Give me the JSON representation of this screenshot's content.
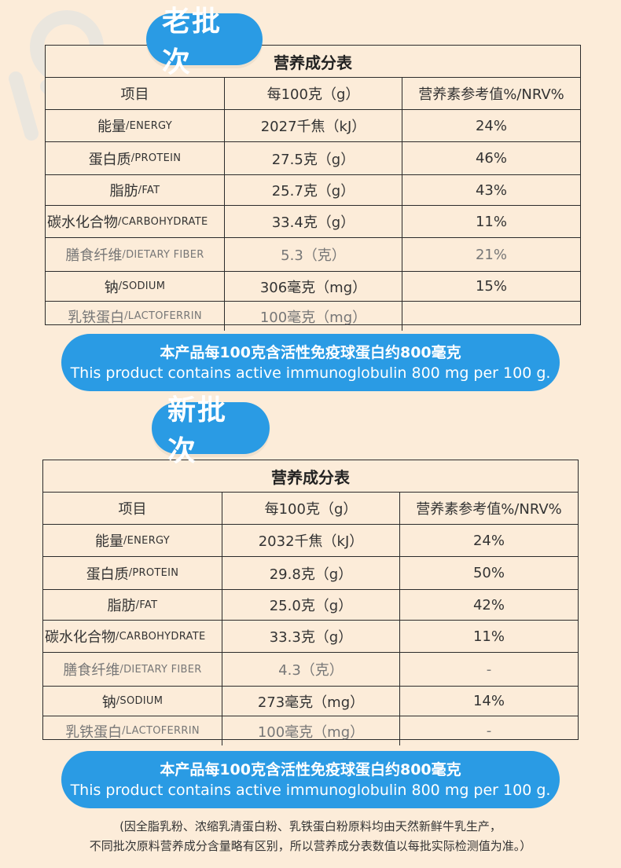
{
  "old_batch": {
    "badge": "老批次",
    "table_title": "营养成分表",
    "headers": [
      "项目",
      "每100克（g）",
      "营养素参考值%/NRV%"
    ],
    "rows": [
      {
        "cn": "能量",
        "en": "/ENERGY",
        "amount": "2027千焦（kJ）",
        "nrv": "24%",
        "muted": false
      },
      {
        "cn": "蛋白质",
        "en": "/PROTEIN",
        "amount": "27.5克（g）",
        "nrv": "46%",
        "muted": false
      },
      {
        "cn": "脂肪",
        "en": "/FAT",
        "amount": "25.7克（g）",
        "nrv": "43%",
        "muted": false
      },
      {
        "cn": "碳水化合物",
        "en": "/CARBOHYDRATE",
        "amount": "33.4克（g）",
        "nrv": "11%",
        "muted": false
      },
      {
        "cn": "膳食纤维",
        "en": "/DIETARY FIBER",
        "amount": "5.3（克）",
        "nrv": "21%",
        "muted": true
      },
      {
        "cn": "钠",
        "en": "/SODIUM",
        "amount": "306毫克（mg）",
        "nrv": "15%",
        "muted": false
      },
      {
        "cn": "乳铁蛋白",
        "en": "/LACTOFERRIN",
        "amount": "100毫克（mg）",
        "nrv": "",
        "muted": true
      }
    ],
    "banner_cn": "本产品每100克含活性免疫球蛋白约800毫克",
    "banner_en": "This product contains active immunoglobulin 800 mg per 100 g."
  },
  "new_batch": {
    "badge": "新批次",
    "table_title": "营养成分表",
    "headers": [
      "项目",
      "每100克（g）",
      "营养素参考值%/NRV%"
    ],
    "rows": [
      {
        "cn": "能量",
        "en": "/ENERGY",
        "amount": "2032千焦（kJ）",
        "nrv": "24%",
        "muted": false
      },
      {
        "cn": "蛋白质",
        "en": "/PROTEIN",
        "amount": "29.8克（g）",
        "nrv": "50%",
        "muted": false
      },
      {
        "cn": "脂肪",
        "en": "/FAT",
        "amount": "25.0克（g）",
        "nrv": "42%",
        "muted": false
      },
      {
        "cn": "碳水化合物",
        "en": "/CARBOHYDRATE",
        "amount": "33.3克（g）",
        "nrv": "11%",
        "muted": false
      },
      {
        "cn": "膳食纤维",
        "en": "/DIETARY FIBER",
        "amount": "4.3（克）",
        "nrv": "-",
        "muted": true
      },
      {
        "cn": "钠",
        "en": "/SODIUM",
        "amount": "273毫克（mg）",
        "nrv": "14%",
        "muted": false
      },
      {
        "cn": "乳铁蛋白",
        "en": "/LACTOFERRIN",
        "amount": "100毫克（mg）",
        "nrv": "-",
        "muted": true
      }
    ],
    "banner_cn": "本产品每100克含活性免疫球蛋白约800毫克",
    "banner_en": "This product contains active immunoglobulin 800 mg per 100 g."
  },
  "footnote": {
    "line1": "(因全脂乳粉、浓缩乳清蛋白粉、乳铁蛋白粉原料均由天然新鲜牛乳生产，",
    "line2": "不同批次原料营养成分含量略有区别，所以营养成分表数值以每批实际检测值为准。）"
  },
  "colors": {
    "background": "#fcecd9",
    "accent": "#2a9be4",
    "border": "#2b2b2b"
  }
}
